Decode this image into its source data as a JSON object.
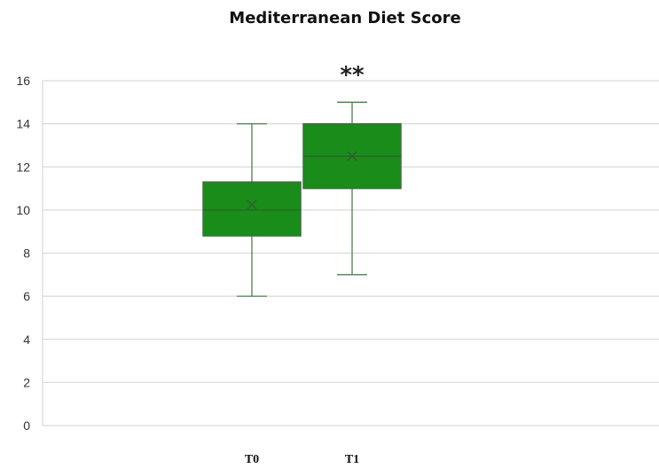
{
  "chart_data": {
    "type": "box",
    "title": "Mediterranean Diet Score",
    "xlabel": "",
    "ylabel": "",
    "ylim": [
      0,
      16
    ],
    "yticks": [
      "0",
      "2",
      "4",
      "6",
      "8",
      "10",
      "12",
      "14",
      "16"
    ],
    "grid": true,
    "legend": "none",
    "categories": [
      "T0",
      "T1"
    ],
    "boxes": [
      {
        "category": "T0",
        "min": 6,
        "q1": 8.8,
        "median": 10,
        "q3": 11.3,
        "max": 14,
        "mean": 10.25
      },
      {
        "category": "T1",
        "min": 7,
        "q1": 11,
        "median": 12.5,
        "q3": 14,
        "max": 15,
        "mean": 12.5
      }
    ],
    "annotations": [
      {
        "category": "T1",
        "text": "**"
      }
    ],
    "colors": {
      "box_fill": "#1a8c1a",
      "box_stroke": "#3f6f3f",
      "whisker": "#4f7f4f",
      "grid": "#d9d9d9"
    }
  }
}
